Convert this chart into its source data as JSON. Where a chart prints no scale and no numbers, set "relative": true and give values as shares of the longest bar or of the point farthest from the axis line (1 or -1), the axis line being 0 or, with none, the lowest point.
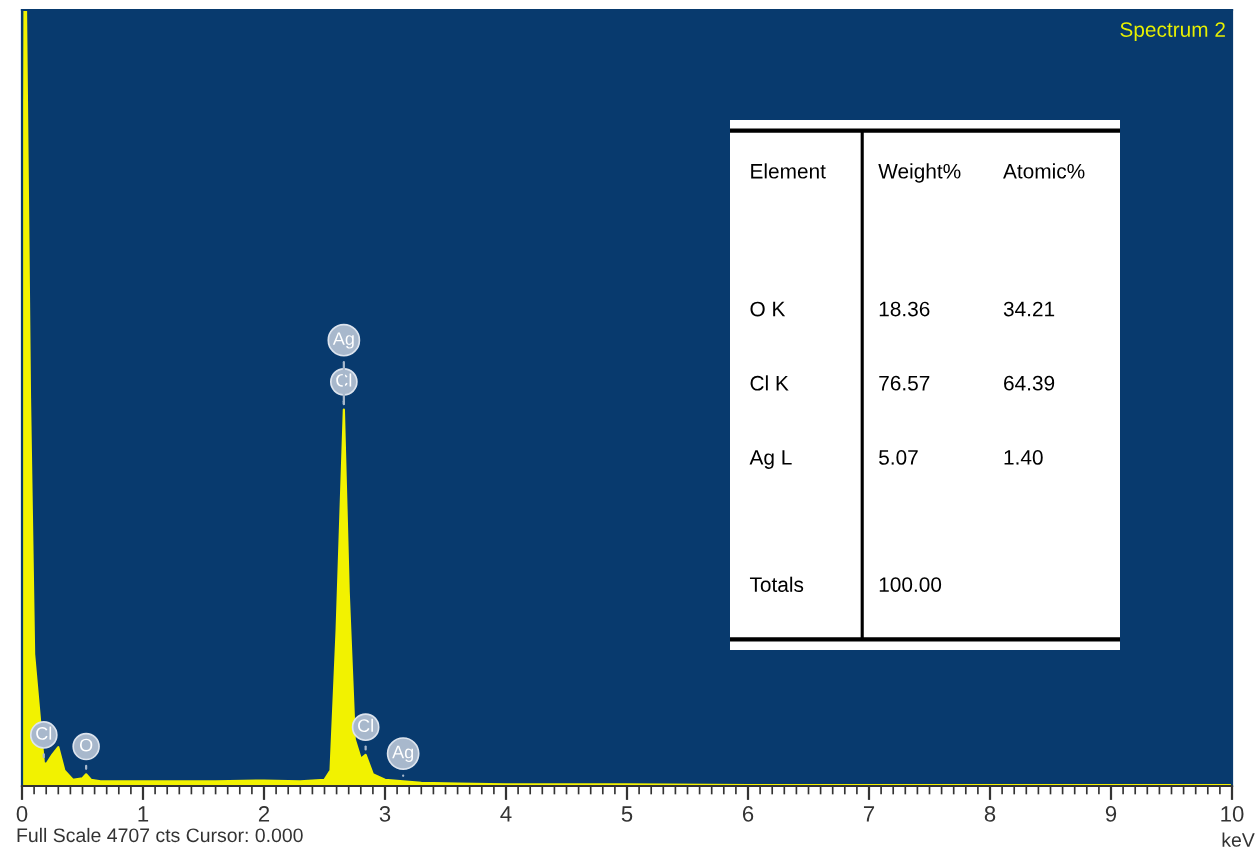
{
  "chart_data": {
    "type": "area",
    "title": "Spectrum 2",
    "subtitle": "Full Scale 4707 cts Cursor: 0.000",
    "xlabel": "keV",
    "relative": true,
    "grid": false,
    "xlim": [
      0,
      10
    ],
    "xticks": [
      0,
      1,
      2,
      3,
      4,
      5,
      6,
      7,
      8,
      9,
      10
    ],
    "x": [
      0.0,
      0.02,
      0.033,
      0.066,
      0.1,
      0.18,
      0.2,
      0.25,
      0.3,
      0.35,
      0.42,
      0.5,
      0.53,
      0.57,
      0.65,
      0.8,
      1.0,
      1.3,
      1.6,
      2.0,
      2.3,
      2.5,
      2.55,
      2.6,
      2.66,
      2.7,
      2.75,
      2.8,
      2.84,
      2.9,
      3.0,
      3.15,
      3.3,
      3.6,
      4.0,
      5.0,
      6.0,
      7.0,
      8.0,
      9.0,
      10.0
    ],
    "series": [
      {
        "color": "#f2f200",
        "values": [
          0,
          1,
          1,
          0.5,
          0.17,
          0.03,
          0.028,
          0.04,
          0.05,
          0.02,
          0.008,
          0.01,
          0.015,
          0.008,
          0.006,
          0.006,
          0.006,
          0.006,
          0.006,
          0.007,
          0.006,
          0.008,
          0.02,
          0.2,
          0.485,
          0.25,
          0.06,
          0.035,
          0.04,
          0.015,
          0.008,
          0.006,
          0.004,
          0.003,
          0.002,
          0.002,
          0.001,
          0.001,
          0.001,
          0.001,
          0.001
        ]
      }
    ],
    "annotations": [
      "Element",
      "Weight%",
      "Atomic%",
      "O K",
      "18.36",
      "34.21",
      "Cl K",
      "76.57",
      "64.39",
      "Ag L",
      "5.07",
      "1.40",
      "Totals",
      "100.00",
      {
        "text": "Cl",
        "x": 0.18,
        "y": 0.03
      },
      {
        "text": "O",
        "x": 0.53,
        "y": 0.015
      },
      {
        "text": "Cl",
        "x": 2.66,
        "y": 0.485
      },
      {
        "text": "Ag",
        "x": 2.66,
        "y": 0.485
      },
      {
        "text": "Cl",
        "x": 2.84,
        "y": 0.04
      },
      {
        "text": "Ag",
        "x": 3.15,
        "y": 0.006
      }
    ]
  }
}
